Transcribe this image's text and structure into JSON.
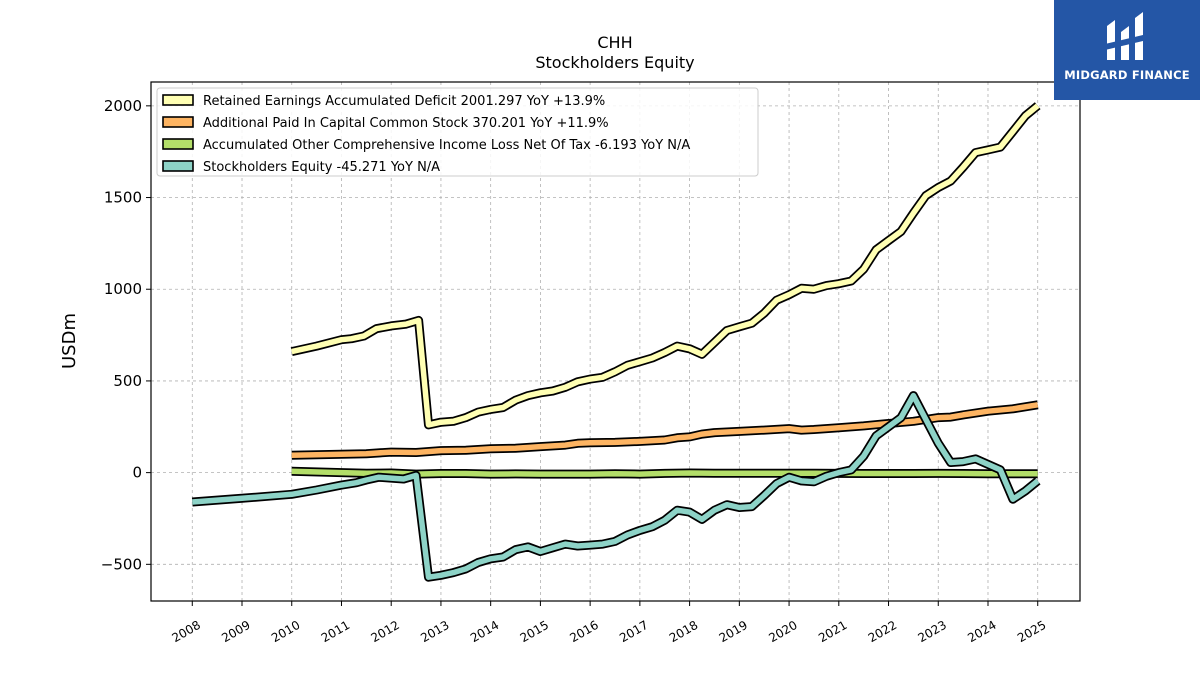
{
  "brand": {
    "name": "MIDGARD FINANCE",
    "bg": "#2456a6"
  },
  "chart_data": {
    "type": "line",
    "title": "CHH",
    "subtitle": "Stockholders  Equity",
    "ylabel": "USDm",
    "ylim": [
      -700,
      2130
    ],
    "xlim": [
      2007.17,
      2025.85
    ],
    "yticks": [
      -500,
      0,
      500,
      1000,
      1500,
      2000
    ],
    "yticklabels": [
      "−500",
      "0",
      "500",
      "1000",
      "1500",
      "2000"
    ],
    "xticks": [
      2008,
      2009,
      2010,
      2011,
      2012,
      2013,
      2014,
      2015,
      2016,
      2017,
      2018,
      2019,
      2020,
      2021,
      2022,
      2023,
      2024,
      2025
    ],
    "xticklabels": [
      "2008",
      "2009",
      "2010",
      "2011",
      "2012",
      "2013",
      "2014",
      "2015",
      "2016",
      "2017",
      "2018",
      "2019",
      "2020",
      "2021",
      "2022",
      "2023",
      "2024",
      "2025"
    ],
    "grid": true,
    "legend_position": "top-left",
    "series": [
      {
        "name": "Retained Earnings Accumulated Deficit",
        "legend": "Retained Earnings Accumulated Deficit  2001.297 YoY +13.9%",
        "color": "#ffffb3",
        "points": [
          [
            2010.0,
            660
          ],
          [
            2010.5,
            690
          ],
          [
            2011.0,
            725
          ],
          [
            2011.2,
            730
          ],
          [
            2011.45,
            745
          ],
          [
            2011.7,
            785
          ],
          [
            2012.0,
            800
          ],
          [
            2012.3,
            810
          ],
          [
            2012.55,
            830
          ],
          [
            2012.75,
            260
          ],
          [
            2013.0,
            275
          ],
          [
            2013.25,
            280
          ],
          [
            2013.5,
            300
          ],
          [
            2013.75,
            330
          ],
          [
            2014.0,
            345
          ],
          [
            2014.25,
            355
          ],
          [
            2014.5,
            395
          ],
          [
            2014.75,
            420
          ],
          [
            2015.0,
            435
          ],
          [
            2015.25,
            445
          ],
          [
            2015.5,
            465
          ],
          [
            2015.75,
            495
          ],
          [
            2016.0,
            510
          ],
          [
            2016.25,
            520
          ],
          [
            2016.5,
            550
          ],
          [
            2016.75,
            585
          ],
          [
            2017.0,
            605
          ],
          [
            2017.25,
            625
          ],
          [
            2017.5,
            655
          ],
          [
            2017.75,
            690
          ],
          [
            2018.0,
            675
          ],
          [
            2018.25,
            645
          ],
          [
            2018.5,
            710
          ],
          [
            2018.75,
            775
          ],
          [
            2019.0,
            795
          ],
          [
            2019.25,
            815
          ],
          [
            2019.5,
            870
          ],
          [
            2019.75,
            940
          ],
          [
            2020.0,
            970
          ],
          [
            2020.25,
            1005
          ],
          [
            2020.5,
            1000
          ],
          [
            2020.75,
            1020
          ],
          [
            2021.0,
            1030
          ],
          [
            2021.25,
            1045
          ],
          [
            2021.5,
            1110
          ],
          [
            2021.75,
            1215
          ],
          [
            2022.0,
            1265
          ],
          [
            2022.25,
            1315
          ],
          [
            2022.5,
            1415
          ],
          [
            2022.75,
            1510
          ],
          [
            2023.0,
            1555
          ],
          [
            2023.25,
            1590
          ],
          [
            2023.5,
            1665
          ],
          [
            2023.75,
            1745
          ],
          [
            2024.0,
            1760
          ],
          [
            2024.25,
            1775
          ],
          [
            2024.5,
            1860
          ],
          [
            2024.75,
            1945
          ],
          [
            2025.0,
            2001
          ]
        ]
      },
      {
        "name": "Additional Paid In Capital Common Stock",
        "legend": "Additional Paid In Capital Common Stock  370.201 YoY +11.9%",
        "color": "#fdb462",
        "points": [
          [
            2010.0,
            95
          ],
          [
            2011.0,
            100
          ],
          [
            2011.5,
            103
          ],
          [
            2012.0,
            112
          ],
          [
            2012.5,
            110
          ],
          [
            2013.0,
            120
          ],
          [
            2013.5,
            122
          ],
          [
            2014.0,
            130
          ],
          [
            2014.5,
            133
          ],
          [
            2015.0,
            142
          ],
          [
            2015.5,
            150
          ],
          [
            2015.75,
            160
          ],
          [
            2016.0,
            163
          ],
          [
            2016.5,
            165
          ],
          [
            2017.0,
            170
          ],
          [
            2017.5,
            178
          ],
          [
            2017.75,
            190
          ],
          [
            2018.0,
            195
          ],
          [
            2018.25,
            210
          ],
          [
            2018.5,
            218
          ],
          [
            2019.0,
            225
          ],
          [
            2019.5,
            232
          ],
          [
            2020.0,
            240
          ],
          [
            2020.25,
            232
          ],
          [
            2020.5,
            235
          ],
          [
            2021.0,
            245
          ],
          [
            2021.5,
            255
          ],
          [
            2022.0,
            268
          ],
          [
            2022.5,
            280
          ],
          [
            2023.0,
            300
          ],
          [
            2023.25,
            303
          ],
          [
            2023.5,
            315
          ],
          [
            2024.0,
            335
          ],
          [
            2024.5,
            348
          ],
          [
            2025.0,
            370
          ]
        ]
      },
      {
        "name": "Accumulated Other Comprehensive Income Loss Net Of Tax",
        "legend": "Accumulated Other Comprehensive Income Loss Net Of Tax  -6.193 YoY N/A",
        "color": "#b3de69",
        "points": [
          [
            2010.0,
            8
          ],
          [
            2011.0,
            0
          ],
          [
            2011.5,
            -3
          ],
          [
            2012.0,
            -2
          ],
          [
            2012.5,
            -8
          ],
          [
            2013.0,
            -5
          ],
          [
            2013.5,
            -5
          ],
          [
            2014.0,
            -8
          ],
          [
            2014.5,
            -7
          ],
          [
            2015.0,
            -8
          ],
          [
            2015.5,
            -8
          ],
          [
            2016.0,
            -8
          ],
          [
            2016.5,
            -6
          ],
          [
            2017.0,
            -8
          ],
          [
            2017.5,
            -4
          ],
          [
            2018.0,
            -2
          ],
          [
            2018.5,
            -3
          ],
          [
            2019.0,
            -3
          ],
          [
            2019.5,
            -3
          ],
          [
            2020.0,
            -3
          ],
          [
            2020.5,
            -3
          ],
          [
            2021.0,
            -4
          ],
          [
            2021.5,
            -5
          ],
          [
            2022.0,
            -5
          ],
          [
            2022.5,
            -5
          ],
          [
            2023.0,
            -4
          ],
          [
            2023.5,
            -5
          ],
          [
            2024.0,
            -6
          ],
          [
            2024.5,
            -6
          ],
          [
            2025.0,
            -6
          ]
        ]
      },
      {
        "name": "Stockholders Equity",
        "legend": "Stockholders Equity  -45.271 YoY N/A",
        "color": "#8dd3c7",
        "points": [
          [
            2008.0,
            -160
          ],
          [
            2009.0,
            -140
          ],
          [
            2010.0,
            -118
          ],
          [
            2010.5,
            -95
          ],
          [
            2011.0,
            -68
          ],
          [
            2011.3,
            -55
          ],
          [
            2011.5,
            -40
          ],
          [
            2011.75,
            -25
          ],
          [
            2012.0,
            -30
          ],
          [
            2012.25,
            -35
          ],
          [
            2012.5,
            -15
          ],
          [
            2012.75,
            -570
          ],
          [
            2013.0,
            -560
          ],
          [
            2013.25,
            -545
          ],
          [
            2013.5,
            -525
          ],
          [
            2013.75,
            -490
          ],
          [
            2014.0,
            -470
          ],
          [
            2014.25,
            -460
          ],
          [
            2014.5,
            -420
          ],
          [
            2014.75,
            -405
          ],
          [
            2015.0,
            -430
          ],
          [
            2015.25,
            -410
          ],
          [
            2015.5,
            -390
          ],
          [
            2015.75,
            -400
          ],
          [
            2016.0,
            -395
          ],
          [
            2016.25,
            -390
          ],
          [
            2016.5,
            -375
          ],
          [
            2016.75,
            -340
          ],
          [
            2017.0,
            -315
          ],
          [
            2017.25,
            -295
          ],
          [
            2017.5,
            -260
          ],
          [
            2017.75,
            -205
          ],
          [
            2018.0,
            -215
          ],
          [
            2018.25,
            -255
          ],
          [
            2018.5,
            -205
          ],
          [
            2018.75,
            -175
          ],
          [
            2019.0,
            -190
          ],
          [
            2019.25,
            -185
          ],
          [
            2019.5,
            -125
          ],
          [
            2019.75,
            -60
          ],
          [
            2020.0,
            -25
          ],
          [
            2020.25,
            -45
          ],
          [
            2020.5,
            -50
          ],
          [
            2020.75,
            -20
          ],
          [
            2021.0,
            0
          ],
          [
            2021.25,
            15
          ],
          [
            2021.5,
            90
          ],
          [
            2021.75,
            200
          ],
          [
            2022.0,
            250
          ],
          [
            2022.25,
            300
          ],
          [
            2022.5,
            420
          ],
          [
            2022.75,
            290
          ],
          [
            2023.0,
            160
          ],
          [
            2023.25,
            55
          ],
          [
            2023.5,
            60
          ],
          [
            2023.75,
            75
          ],
          [
            2024.0,
            45
          ],
          [
            2024.25,
            15
          ],
          [
            2024.5,
            -145
          ],
          [
            2024.75,
            -100
          ],
          [
            2025.0,
            -45
          ]
        ]
      }
    ]
  }
}
